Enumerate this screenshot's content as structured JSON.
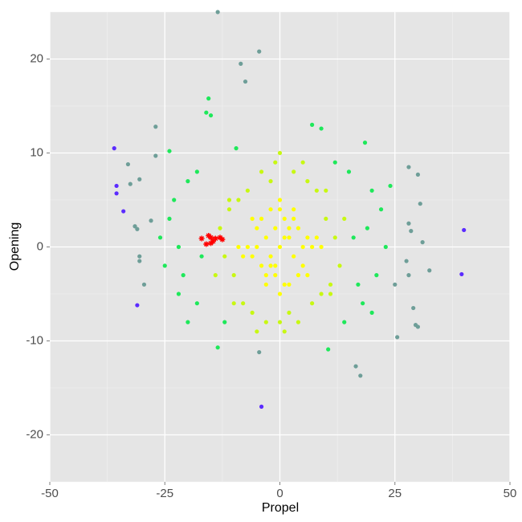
{
  "chart_data": {
    "type": "scatter",
    "x_label": "Propel",
    "y_label": "Opening",
    "xlim": [
      -50,
      50
    ],
    "ylim": [
      -25,
      25
    ],
    "xticks": [
      -50,
      -25,
      0,
      25,
      50
    ],
    "yticks": [
      -20,
      -10,
      0,
      10,
      20
    ],
    "xminor": [
      -37.5,
      -12.5,
      12.5,
      37.5
    ],
    "yminor": [
      -25,
      -15,
      -5,
      5,
      15,
      25
    ],
    "grid": true,
    "background": "#e5e5e5",
    "series": [
      {
        "color": "#5b2bff",
        "marker": "circle",
        "x": [
          -36,
          -35.5,
          -35.5,
          -34,
          -4,
          40,
          39.5,
          -31
        ],
        "values": [
          10.5,
          6.5,
          5.7,
          3.8,
          -17,
          1.8,
          -2.9,
          -6.2
        ]
      },
      {
        "color": "#6e9e98",
        "marker": "circle",
        "x": [
          -27,
          -33,
          -32.5,
          -27,
          -30.5,
          -31.5,
          -31,
          -30.5,
          -30.5,
          -29.5,
          -28,
          28,
          30,
          30.5,
          32.5,
          31,
          29,
          30,
          29.5,
          25.5,
          17.5,
          16.5,
          -4.5,
          -13.5,
          -8.5,
          -7.5,
          -4.5,
          28,
          28.5,
          27.5,
          28,
          25
        ],
        "values": [
          12.8,
          8.8,
          6.7,
          9.7,
          7.2,
          2.2,
          1.9,
          -1,
          -1.5,
          -4,
          2.8,
          8.5,
          7.7,
          4.6,
          -2.5,
          0.5,
          -6.5,
          -8.5,
          -8.3,
          -9.6,
          -13.7,
          -12.7,
          -11.2,
          25,
          19.5,
          17.6,
          20.8,
          2.5,
          1.7,
          -1.5,
          -3,
          -4
        ]
      },
      {
        "color": "#1ee85a",
        "marker": "circle",
        "x": [
          -15.5,
          -16,
          -15,
          -13.5,
          10.5,
          18.5,
          7,
          9,
          -9.5,
          -24,
          -20,
          -22,
          -25,
          -24,
          -20,
          -18,
          18,
          20,
          22,
          17,
          19,
          21,
          23,
          -22,
          -23,
          15,
          -18,
          -12,
          12,
          14,
          20,
          -26,
          24,
          -21,
          16,
          -17
        ],
        "values": [
          15.8,
          14.3,
          14,
          -10.7,
          -10.9,
          11.1,
          13,
          12.6,
          10.5,
          10.2,
          -8,
          -5,
          -2,
          3,
          7,
          -6,
          -6,
          6,
          4,
          -4,
          2,
          -3,
          0,
          0,
          5,
          8,
          8,
          -8,
          9,
          -8,
          -7,
          1,
          6.5,
          -3,
          1,
          -1
        ]
      },
      {
        "color": "#c8f812",
        "marker": "circle",
        "x": [
          10,
          -10,
          11,
          -11,
          12,
          -12,
          8,
          -8,
          6,
          -6,
          3,
          -3,
          0,
          2,
          -2,
          9,
          -9,
          13,
          -13,
          7,
          -7,
          5,
          -5,
          1,
          -1,
          10,
          -10,
          14,
          -14,
          4,
          -4,
          11,
          -11,
          0
        ],
        "values": [
          3,
          -3,
          -4,
          4,
          1,
          -1,
          6,
          -6,
          7,
          -7,
          8,
          -8,
          -8,
          -7,
          7,
          -5,
          5,
          -2,
          2,
          -6,
          6,
          9,
          -9,
          -9,
          9,
          6,
          -6,
          3,
          -3,
          -8,
          8,
          -5,
          5,
          10
        ]
      },
      {
        "color": "#ffff00",
        "marker": "circle",
        "x": [
          0,
          2,
          -2,
          4,
          -4,
          1,
          -1,
          3,
          -3,
          5,
          -5,
          6,
          -6,
          0,
          2,
          -2,
          7,
          -7,
          1,
          -1,
          3,
          -3,
          0,
          4,
          -4,
          2,
          -2,
          5,
          -5,
          8,
          -8,
          0,
          1,
          -1,
          6,
          -6,
          3,
          -3,
          9,
          -9
        ],
        "values": [
          0,
          1,
          -1,
          2,
          -2,
          3,
          -3,
          -1,
          1,
          0,
          0,
          1,
          -1,
          4,
          -4,
          4,
          0,
          0,
          -4,
          -2,
          3,
          -3,
          -5,
          -3,
          3,
          2,
          -2,
          -2,
          2,
          1,
          -1,
          5,
          1,
          2,
          -3,
          3,
          4,
          -4,
          0,
          0
        ]
      },
      {
        "color": "#ff0000",
        "marker": "star",
        "x": [
          -17,
          -16,
          -15.5,
          -15,
          -15,
          -14.5,
          -14,
          -13,
          -12.5
        ],
        "values": [
          0.9,
          0.3,
          1.2,
          0.4,
          1.0,
          0.6,
          0.9,
          1.0,
          0.8
        ]
      }
    ]
  }
}
